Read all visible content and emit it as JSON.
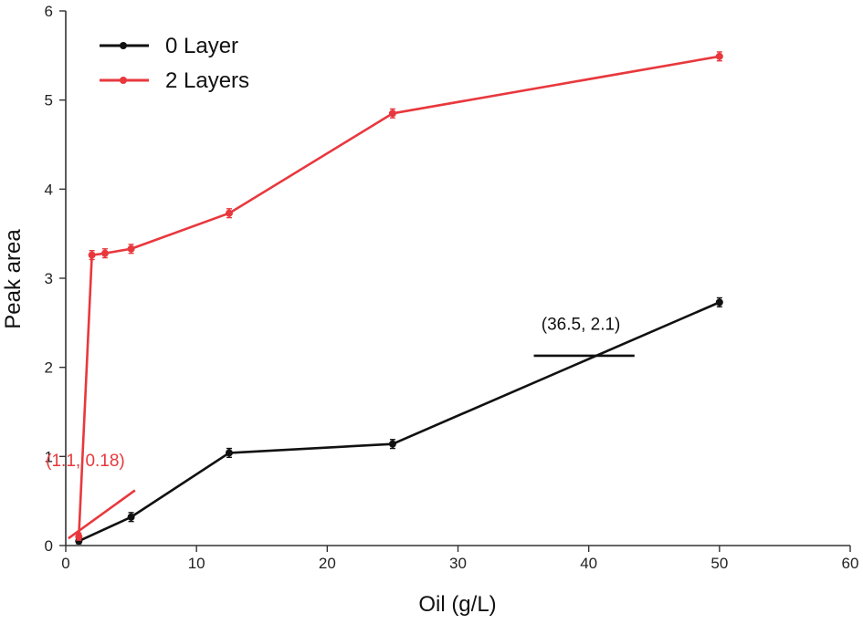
{
  "chart_data": {
    "type": "line",
    "xlabel": "Oil (g/L)",
    "ylabel": "Peak area",
    "xlim": [
      0,
      60
    ],
    "ylim": [
      0,
      6
    ],
    "xticks": [
      0,
      10,
      20,
      30,
      40,
      50,
      60
    ],
    "yticks": [
      0,
      1,
      2,
      3,
      4,
      5,
      6
    ],
    "grid": false,
    "legend_position": "top-left",
    "series": [
      {
        "name": "0 Layer",
        "color": "#111111",
        "marker": "circle",
        "x": [
          1,
          5,
          12.5,
          25,
          50
        ],
        "y": [
          0.05,
          0.32,
          1.04,
          1.14,
          2.73
        ],
        "err": [
          0.03,
          0.05,
          0.05,
          0.05,
          0.05
        ]
      },
      {
        "name": "2 Layers",
        "color": "#e8383d",
        "marker": "circle",
        "x": [
          1,
          2,
          3,
          5,
          12.5,
          25,
          50
        ],
        "y": [
          0.1,
          3.26,
          3.28,
          3.33,
          3.73,
          4.85,
          5.49
        ],
        "err": [
          0.04,
          0.05,
          0.05,
          0.05,
          0.05,
          0.05,
          0.05
        ]
      }
    ],
    "annotations": [
      {
        "text": "(36.5, 2.1)",
        "color": "#111111",
        "label_at": [
          39.4,
          2.42
        ],
        "line": [
          [
            35.8,
            2.13
          ],
          [
            43.5,
            2.13
          ]
        ]
      },
      {
        "text": "(1.1, 0.18)",
        "color": "#e8383d",
        "label_at": [
          1.5,
          0.89
        ],
        "line": [
          [
            0.2,
            0.08
          ],
          [
            5.3,
            0.62
          ]
        ]
      }
    ]
  }
}
